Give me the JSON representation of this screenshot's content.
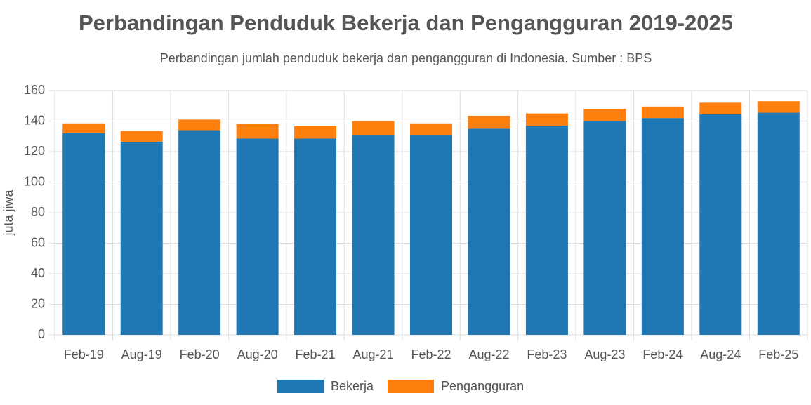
{
  "chart_data": {
    "type": "stacked_bar",
    "title": "Perbandingan Penduduk Bekerja dan Pengangguran 2019-2025",
    "subtitle": "Perbandingan jumlah penduduk bekerja dan pengangguran di Indonesia. Sumber : BPS",
    "y_label": "juta jiwa",
    "categories": [
      "Feb-19",
      "Aug-19",
      "Feb-20",
      "Aug-20",
      "Feb-21",
      "Aug-21",
      "Feb-22",
      "Aug-22",
      "Feb-23",
      "Aug-23",
      "Feb-24",
      "Aug-24",
      "Feb-25"
    ],
    "series": [
      {
        "name": "Bekerja",
        "color": "#1f77b4",
        "values": [
          132,
          126.5,
          134,
          128.5,
          128.5,
          131,
          131,
          135,
          137,
          140,
          142,
          144.5,
          145.5
        ]
      },
      {
        "name": "Pengangguran",
        "color": "#ff7f0e",
        "values": [
          6.5,
          7,
          7,
          9.5,
          8.5,
          9,
          7.5,
          8.5,
          8,
          8,
          7.5,
          7.5,
          7.5
        ]
      }
    ],
    "ylim": [
      0,
      160
    ],
    "yticks": [
      0,
      20,
      40,
      60,
      80,
      100,
      120,
      140,
      160
    ],
    "grid": true,
    "legend": "bottom"
  }
}
